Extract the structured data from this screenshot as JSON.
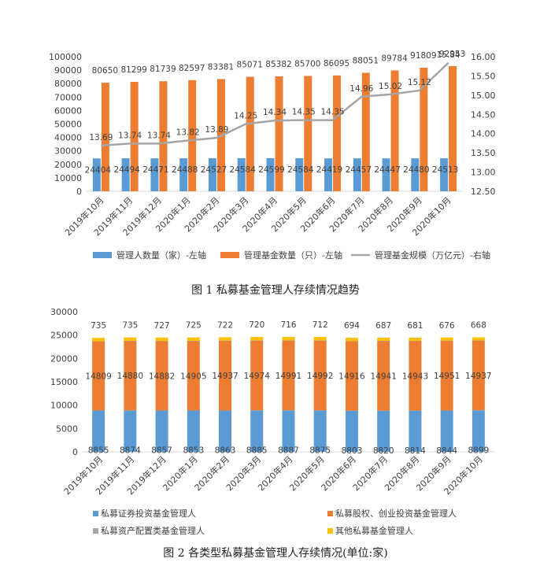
{
  "chart_data": [
    {
      "type": "bar",
      "combo": "bar+line",
      "caption": "图 1  私募基金管理人存续情况趋势",
      "categories": [
        "2019年10月",
        "2019年11月",
        "2019年12月",
        "2020年1月",
        "2020年2月",
        "2020年3月",
        "2020年4月",
        "2020年5月",
        "2020年6月",
        "2020年7月",
        "2020年8月",
        "2020年9月",
        "2020年10月"
      ],
      "series": [
        {
          "name": "管理人数量（家）-左轴",
          "type": "bar",
          "axis": "left",
          "color": "#5B9BD5",
          "values": [
            24404,
            24494,
            24471,
            24488,
            24527,
            24584,
            24599,
            24584,
            24419,
            24457,
            24447,
            24480,
            24513
          ]
        },
        {
          "name": "管理基金数量（只）-左轴",
          "type": "bar",
          "axis": "left",
          "color": "#ED7D31",
          "values": [
            80650,
            81299,
            81739,
            82597,
            83381,
            85071,
            85382,
            85700,
            86095,
            88051,
            89784,
            91809,
            92953
          ]
        },
        {
          "name": "管理基金规模（万亿元）-右轴",
          "type": "line",
          "axis": "right",
          "color": "#A5A5A5",
          "values": [
            13.69,
            13.74,
            13.74,
            13.82,
            13.89,
            14.25,
            14.34,
            14.35,
            14.35,
            14.96,
            15.02,
            15.12,
            15.84
          ]
        }
      ],
      "ylim_left": [
        0,
        100000
      ],
      "yticks_left": [
        "0",
        "10000",
        "20000",
        "30000",
        "40000",
        "50000",
        "60000",
        "70000",
        "80000",
        "90000",
        "100000"
      ],
      "ylim_right": [
        12.5,
        16.0
      ],
      "yticks_right": [
        "12.50",
        "13.00",
        "13.50",
        "14.00",
        "14.50",
        "15.00",
        "15.50",
        "16.00"
      ],
      "grid": false,
      "legend_position": "bottom"
    },
    {
      "type": "bar",
      "stacked": true,
      "caption": "图 2  各类型私募基金管理人存续情况(单位:家)",
      "categories": [
        "2019年10月",
        "2019年11月",
        "2019年12月",
        "2020年1月",
        "2020年2月",
        "2020年3月",
        "2020年4月",
        "2020年5月",
        "2020年6月",
        "2020年7月",
        "2020年8月",
        "2020年9月",
        "2020年10月"
      ],
      "series": [
        {
          "name": "私募证券投资基金管理人",
          "color": "#5B9BD5",
          "values": [
            8855,
            8874,
            8857,
            8853,
            8863,
            8885,
            8887,
            8875,
            8803,
            8820,
            8814,
            8844,
            8899
          ]
        },
        {
          "name": "私募股权、创业投资基金管理人",
          "color": "#ED7D31",
          "values": [
            14809,
            14880,
            14882,
            14905,
            14937,
            14974,
            14991,
            14992,
            14916,
            14941,
            14943,
            14951,
            14937
          ]
        },
        {
          "name": "私募资产配置类基金管理人",
          "color": "#A5A5A5",
          "values": [
            5,
            5,
            5,
            5,
            5,
            5,
            5,
            5,
            6,
            9,
            9,
            9,
            9
          ]
        },
        {
          "name": "其他私募基金管理人",
          "color": "#FFC000",
          "values": [
            735,
            735,
            727,
            725,
            722,
            720,
            716,
            712,
            694,
            687,
            681,
            676,
            668
          ]
        }
      ],
      "ylim": [
        0,
        30000
      ],
      "yticks": [
        "0",
        "5000",
        "10000",
        "15000",
        "20000",
        "25000",
        "30000"
      ],
      "grid": false,
      "legend_position": "bottom"
    }
  ]
}
